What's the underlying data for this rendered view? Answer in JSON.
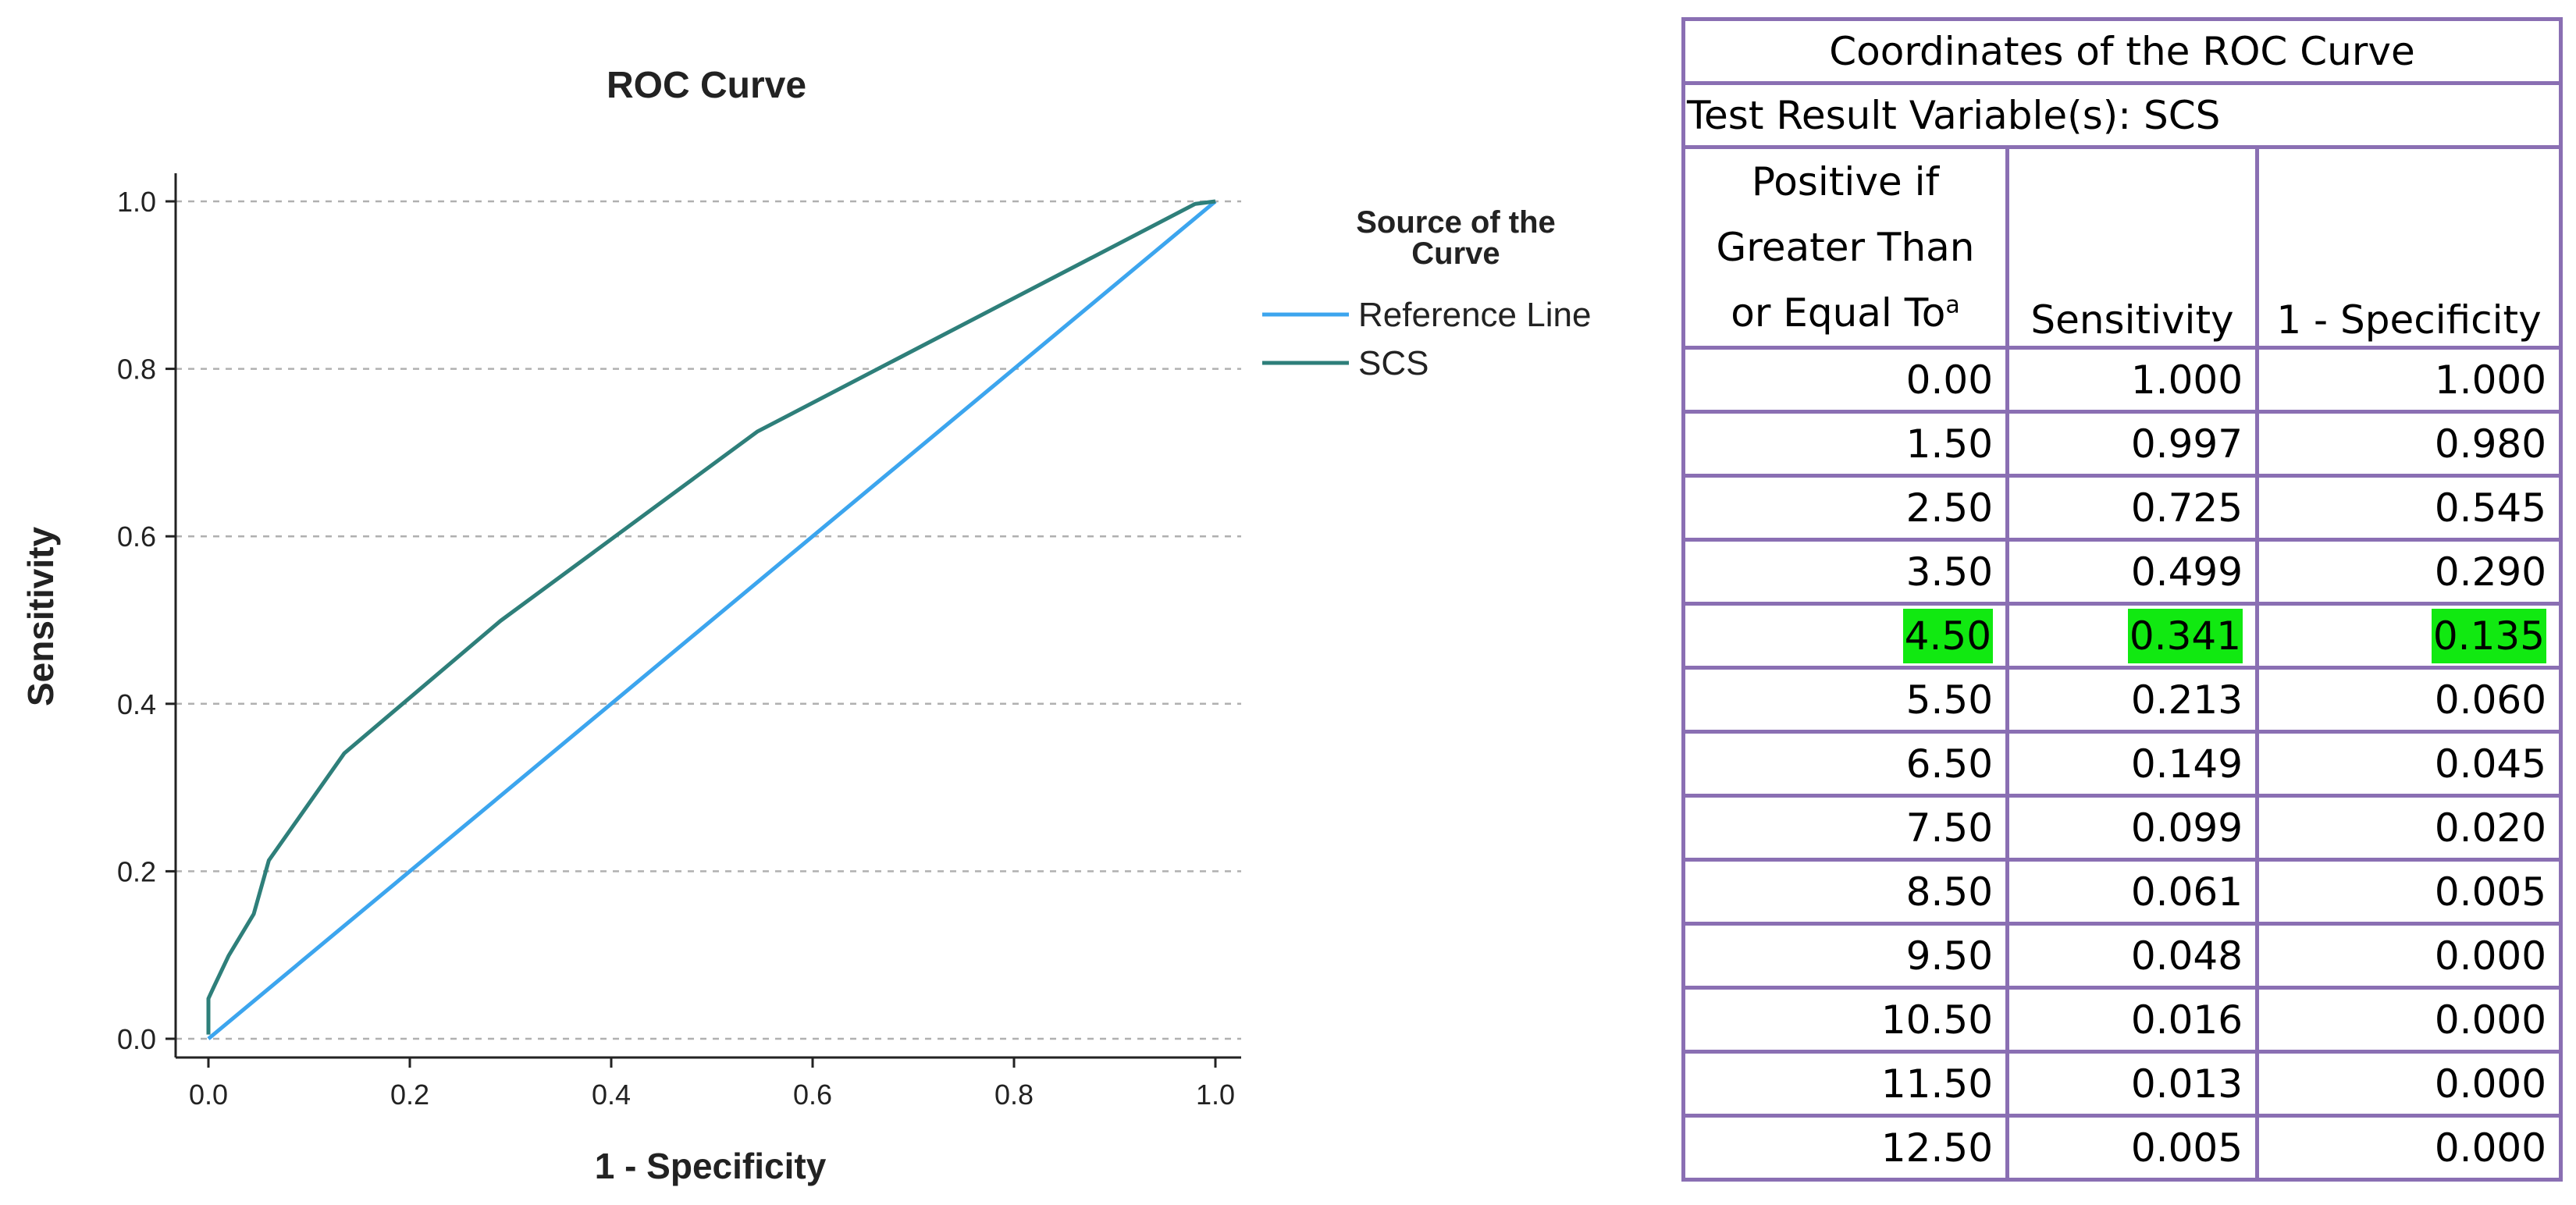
{
  "chart_data": {
    "type": "line",
    "title": "ROC Curve",
    "xlabel": "1 - Specificity",
    "ylabel": "Sensitivity",
    "xlim": [
      0,
      1
    ],
    "ylim": [
      0,
      1
    ],
    "xticks": [
      "0.0",
      "0.2",
      "0.4",
      "0.6",
      "0.8",
      "1.0"
    ],
    "yticks": [
      "0.0",
      "0.2",
      "0.4",
      "0.6",
      "0.8",
      "1.0"
    ],
    "grid": "horizontal dashed",
    "legend_title": "Source of the Curve",
    "legend_placement": "right",
    "series": [
      {
        "name": "Reference Line",
        "color": "#3ca5ee",
        "x": [
          0,
          1
        ],
        "y": [
          0,
          1
        ]
      },
      {
        "name": "SCS",
        "color": "#2e7f7a",
        "x": [
          0.0,
          0.0,
          0.0,
          0.005,
          0.02,
          0.045,
          0.06,
          0.135,
          0.29,
          0.545,
          0.98,
          1.0
        ],
        "y": [
          0.005,
          0.013,
          0.048,
          0.061,
          0.099,
          0.149,
          0.213,
          0.341,
          0.499,
          0.725,
          0.997,
          1.0
        ]
      }
    ]
  },
  "table": {
    "title": "Coordinates of the ROC Curve",
    "subtitle": "Test Result Variable(s):   SCS",
    "headers": {
      "col1_lines": [
        "Positive if",
        "Greater Than",
        "or Equal To"
      ],
      "col1_sup": "a",
      "col2": "Sensitivity",
      "col3": "1 - Specificity"
    },
    "rows": [
      {
        "threshold": "0.00",
        "sensitivity": "1.000",
        "one_minus_specificity": "1.000"
      },
      {
        "threshold": "1.50",
        "sensitivity": "0.997",
        "one_minus_specificity": "0.980"
      },
      {
        "threshold": "2.50",
        "sensitivity": "0.725",
        "one_minus_specificity": "0.545"
      },
      {
        "threshold": "3.50",
        "sensitivity": "0.499",
        "one_minus_specificity": "0.290"
      },
      {
        "threshold": "4.50",
        "sensitivity": "0.341",
        "one_minus_specificity": "0.135",
        "highlight": true
      },
      {
        "threshold": "5.50",
        "sensitivity": "0.213",
        "one_minus_specificity": "0.060"
      },
      {
        "threshold": "6.50",
        "sensitivity": "0.149",
        "one_minus_specificity": "0.045"
      },
      {
        "threshold": "7.50",
        "sensitivity": "0.099",
        "one_minus_specificity": "0.020"
      },
      {
        "threshold": "8.50",
        "sensitivity": "0.061",
        "one_minus_specificity": "0.005"
      },
      {
        "threshold": "9.50",
        "sensitivity": "0.048",
        "one_minus_specificity": "0.000"
      },
      {
        "threshold": "10.50",
        "sensitivity": "0.016",
        "one_minus_specificity": "0.000"
      },
      {
        "threshold": "11.50",
        "sensitivity": "0.013",
        "one_minus_specificity": "0.000"
      },
      {
        "threshold": "12.50",
        "sensitivity": "0.005",
        "one_minus_specificity": "0.000"
      }
    ],
    "highlight_color": "#11e911",
    "border_color": "#8a6fb3"
  }
}
